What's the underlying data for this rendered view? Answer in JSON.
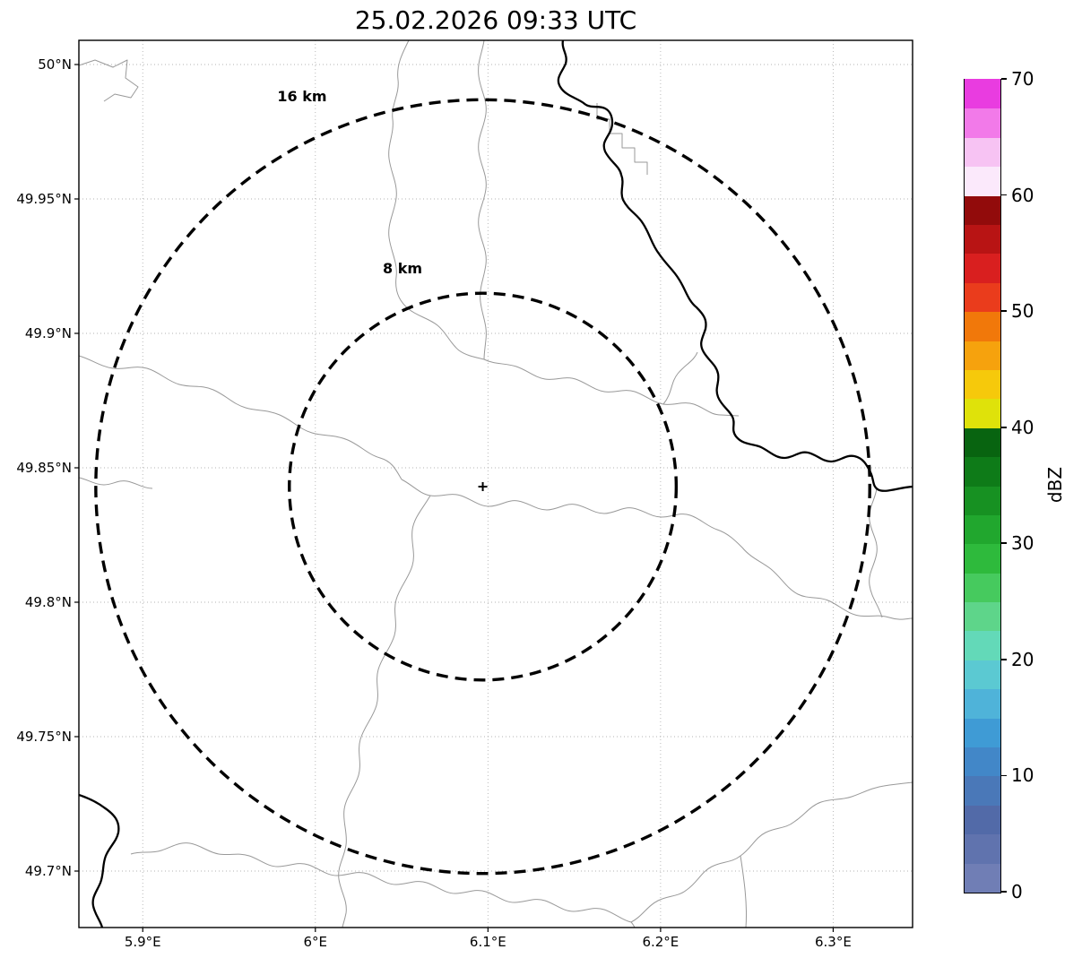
{
  "title": "25.02.2026 09:33 UTC",
  "chart_data": {
    "type": "heatmap",
    "description": "Weather radar reflectivity map (PPI view) over a lat/lon grid with 8 km and 16 km range rings around the radar site; no precipitation echoes visible in this frame",
    "title": "25.02.2026 09:33 UTC",
    "grid": "dotted",
    "legend": "colorbar right",
    "x_axis": {
      "range": [
        5.863,
        6.346
      ],
      "ticks": [
        {
          "value": 5.9,
          "label": "5.9°E"
        },
        {
          "value": 6.0,
          "label": "6°E"
        },
        {
          "value": 6.1,
          "label": "6.1°E"
        },
        {
          "value": 6.2,
          "label": "6.2°E"
        },
        {
          "value": 6.3,
          "label": "6.3°E"
        }
      ]
    },
    "y_axis": {
      "range": [
        49.679,
        50.009
      ],
      "ticks": [
        {
          "value": 50.0,
          "label": "50°N"
        },
        {
          "value": 49.95,
          "label": "49.95°N"
        },
        {
          "value": 49.9,
          "label": "49.9°N"
        },
        {
          "value": 49.85,
          "label": "49.85°N"
        },
        {
          "value": 49.8,
          "label": "49.8°N"
        },
        {
          "value": 49.75,
          "label": "49.75°N"
        },
        {
          "value": 49.7,
          "label": "49.7°N"
        }
      ]
    },
    "radar_site": {
      "lon": 6.097,
      "lat": 49.843,
      "marker": "+"
    },
    "range_rings": [
      {
        "radius_km": 8,
        "label": "8 km"
      },
      {
        "radius_km": 16,
        "label": "16 km"
      }
    ],
    "reflectivity": {
      "values": [],
      "note": "no radar echoes visible (empty field)"
    },
    "colorbar": {
      "label": "dBZ",
      "min": 0,
      "max": 70,
      "segment_step": 2.5,
      "ticks": [
        0,
        10,
        20,
        30,
        40,
        50,
        60,
        70
      ],
      "colors_bottom_to_top": [
        "#707eb5",
        "#6073ae",
        "#526aa8",
        "#4a78b8",
        "#4287c8",
        "#3f9bd5",
        "#4fb3d9",
        "#5bc9d2",
        "#63d9b8",
        "#5ed58a",
        "#46ca5e",
        "#2eba3c",
        "#21a72e",
        "#179122",
        "#0e7b18",
        "#086410",
        "#dfe20a",
        "#f6c90b",
        "#f6a20d",
        "#f1780a",
        "#ea3c1c",
        "#d91f1f",
        "#b81414",
        "#920b0b",
        "#fbe9fb",
        "#f7c3f3",
        "#f27ae9",
        "#e93ce0"
      ]
    }
  }
}
